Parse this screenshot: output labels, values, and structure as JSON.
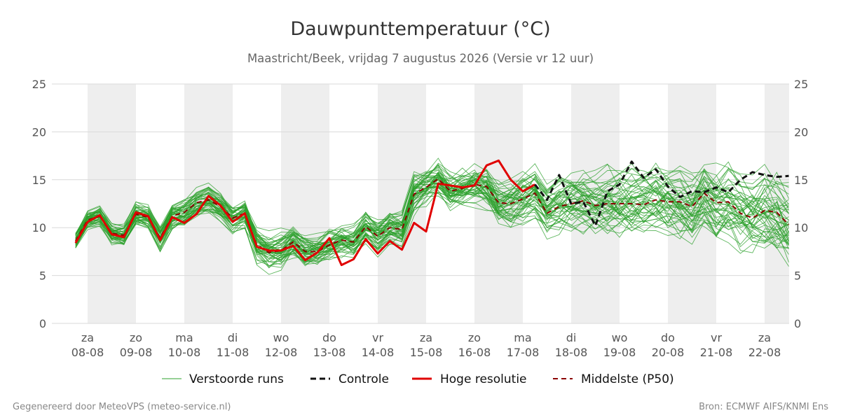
{
  "chart_data": {
    "type": "line",
    "title": "Dauwpunttemperatuur (°C)",
    "subtitle": "Maastricht/Beek, vrijdag  7 augustus 2026 (Versie vr 12 uur)",
    "ylim": [
      0,
      25
    ],
    "yticks": [
      "0",
      "5",
      "10",
      "15",
      "20",
      "25"
    ],
    "y_axis_both_sides": true,
    "grid": "horizontal",
    "xlim": [
      0,
      14.6
    ],
    "days": [
      {
        "day": "za",
        "date": "08-08"
      },
      {
        "day": "zo",
        "date": "09-08"
      },
      {
        "day": "ma",
        "date": "10-08"
      },
      {
        "day": "di",
        "date": "11-08"
      },
      {
        "day": "wo",
        "date": "12-08"
      },
      {
        "day": "do",
        "date": "13-08"
      },
      {
        "day": "vr",
        "date": "14-08"
      },
      {
        "day": "za",
        "date": "15-08"
      },
      {
        "day": "zo",
        "date": "16-08"
      },
      {
        "day": "ma",
        "date": "17-08"
      },
      {
        "day": "di",
        "date": "18-08"
      },
      {
        "day": "wo",
        "date": "19-08"
      },
      {
        "day": "do",
        "date": "20-08"
      },
      {
        "day": "vr",
        "date": "21-08"
      },
      {
        "day": "za",
        "date": "22-08"
      }
    ],
    "shaded_periods": [
      [
        0,
        1
      ],
      [
        2,
        3
      ],
      [
        4,
        5
      ],
      [
        6,
        7
      ],
      [
        8,
        9
      ],
      [
        10,
        11
      ],
      [
        12,
        13
      ],
      [
        14,
        14.6
      ]
    ],
    "legend_position": "bottom",
    "legend": [
      "Verstoorde runs",
      "Controle",
      "Hoge resolutie",
      "Middelste (P50)"
    ],
    "colors": {
      "ensemble": "#2ca02c",
      "control": "#111111",
      "high_res": "#e00000",
      "median": "#8b0000",
      "shade": "#eeeeee",
      "grid": "#d9d9d9"
    },
    "ensemble_runs": 50,
    "hoge_resolutie": {
      "name": "Hoge resolutie",
      "x": [
        -0.25,
        0,
        0.25,
        0.5,
        0.75,
        1,
        1.25,
        1.5,
        1.75,
        2,
        2.25,
        2.5,
        2.75,
        3,
        3.25,
        3.5,
        3.75,
        4,
        4.25,
        4.5,
        4.75,
        5,
        5.25,
        5.5,
        5.75,
        6,
        6.25,
        6.5,
        6.75,
        7,
        7.25,
        7.5,
        7.75,
        8,
        8.25,
        8.5,
        8.75,
        9,
        9.25
      ],
      "values": [
        8.4,
        10.6,
        11.3,
        9.3,
        9.0,
        11.6,
        11.2,
        8.7,
        11.1,
        10.5,
        11.4,
        13.3,
        12.3,
        10.6,
        11.5,
        8.0,
        7.6,
        7.6,
        8.1,
        6.6,
        7.4,
        8.9,
        6.1,
        6.7,
        8.8,
        7.3,
        8.6,
        7.7,
        10.5,
        9.6,
        14.6,
        14.4,
        14.2,
        14.4,
        16.5,
        17.0,
        15.0,
        13.8,
        14.5
      ]
    },
    "controle": {
      "name": "Controle",
      "x": [
        9.25,
        9.5,
        9.75,
        10,
        10.25,
        10.5,
        10.75,
        11,
        11.25,
        11.5,
        11.75,
        12,
        12.25,
        12.5,
        12.75,
        13,
        13.25,
        13.5,
        13.75,
        14,
        14.25,
        14.5
      ],
      "values": [
        14.5,
        12.9,
        15.5,
        12.5,
        12.7,
        10.2,
        13.8,
        14.5,
        16.9,
        15.2,
        16.1,
        14.3,
        13.2,
        13.8,
        13.7,
        14.2,
        13.7,
        15.0,
        15.8,
        15.5,
        15.3,
        15.4
      ]
    },
    "middelste_p50": {
      "name": "Middelste (P50)",
      "x": [
        -0.25,
        0,
        0.25,
        0.5,
        0.75,
        1,
        1.25,
        1.5,
        1.75,
        2,
        2.25,
        2.5,
        2.75,
        3,
        3.25,
        3.5,
        3.75,
        4,
        4.25,
        4.5,
        4.75,
        5,
        5.25,
        5.5,
        5.75,
        6,
        6.25,
        6.5,
        6.75,
        7,
        7.25,
        7.5,
        7.75,
        8,
        8.25,
        8.5,
        8.75,
        9,
        9.25,
        9.5,
        9.75,
        10,
        10.25,
        10.5,
        10.75,
        11,
        11.25,
        11.5,
        11.75,
        12,
        12.25,
        12.5,
        12.75,
        13,
        13.25,
        13.5,
        13.75,
        14,
        14.25,
        14.5
      ],
      "values": [
        8.6,
        10.8,
        11.2,
        9.4,
        9.2,
        11.4,
        11.1,
        8.9,
        11.2,
        11.6,
        12.6,
        12.9,
        12.2,
        11.0,
        11.5,
        8.2,
        7.4,
        7.6,
        8.5,
        7.5,
        7.5,
        8.2,
        8.7,
        8.5,
        10.1,
        9.1,
        10.0,
        9.8,
        13.5,
        14.2,
        15.1,
        13.8,
        14.1,
        14.5,
        14.3,
        12.6,
        12.5,
        13.0,
        13.6,
        11.5,
        12.2,
        12.5,
        12.8,
        12.3,
        12.5,
        12.5,
        12.5,
        12.4,
        12.9,
        12.7,
        12.7,
        12.2,
        13.6,
        12.6,
        12.7,
        11.5,
        11.0,
        11.8,
        11.6,
        10.3
      ]
    }
  },
  "footer": {
    "left": "Gegenereerd door MeteoVPS (meteo-service.nl)",
    "right": "Bron: ECMWF AIFS/KNMI Ens"
  }
}
